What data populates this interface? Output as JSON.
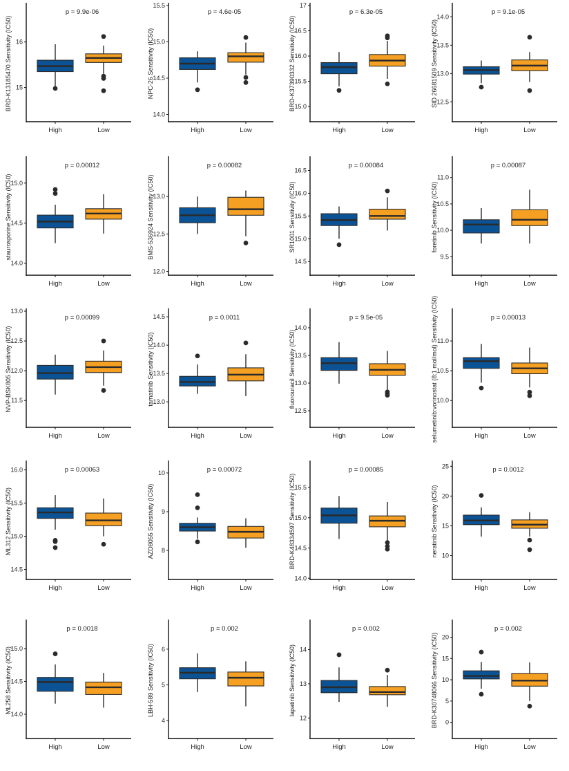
{
  "colors": {
    "High": "#0b5394",
    "Low": "#f5a023",
    "outline": "#2b2b2b",
    "outlier": "#2b2b2b"
  },
  "chart_data": [
    {
      "type": "boxplot",
      "title": "p = 9.9e-06",
      "ylabel": "BRD-K13185470 Sensitivity (IC50)",
      "categories": [
        "High",
        "Low"
      ],
      "ylim": [
        14.25,
        16.8
      ],
      "yticks": [
        15,
        16
      ],
      "ytick_labels": [
        "15",
        "16"
      ],
      "boxes": [
        {
          "group": "High",
          "whisker_low": 15.0,
          "q1": 15.35,
          "median": 15.47,
          "q3": 15.6,
          "whisker_high": 15.95,
          "outliers": [
            14.98
          ]
        },
        {
          "group": "Low",
          "whisker_low": 15.3,
          "q1": 15.55,
          "median": 15.65,
          "q3": 15.74,
          "whisker_high": 15.92,
          "outliers": [
            16.12,
            15.25,
            15.2,
            14.93
          ]
        }
      ]
    },
    {
      "type": "boxplot",
      "title": "p = 4.6e-05",
      "ylabel": "NPC-26 Sensitivity (IC50)",
      "categories": [
        "High",
        "Low"
      ],
      "ylim": [
        13.9,
        15.5
      ],
      "yticks": [
        14.0,
        14.5,
        15.0,
        15.5
      ],
      "ytick_labels": [
        "14.0",
        "14.5",
        "15.0",
        "15.5"
      ],
      "boxes": [
        {
          "group": "High",
          "whisker_low": 14.44,
          "q1": 14.62,
          "median": 14.7,
          "q3": 14.78,
          "whisker_high": 14.87,
          "outliers": [
            14.34
          ]
        },
        {
          "group": "Low",
          "whisker_low": 14.55,
          "q1": 14.72,
          "median": 14.8,
          "q3": 14.85,
          "whisker_high": 14.99,
          "outliers": [
            15.06,
            14.51,
            14.44
          ]
        }
      ]
    },
    {
      "type": "boxplot",
      "title": "p = 6.3e-05",
      "ylabel": "BRD-K37390332 Sensitivity (IC50)",
      "categories": [
        "High",
        "Low"
      ],
      "ylim": [
        14.7,
        17.0
      ],
      "yticks": [
        15.0,
        15.5,
        16.0,
        16.5,
        17
      ],
      "ytick_labels": [
        "15.0",
        "15.5",
        "16.0",
        "16.5",
        "17"
      ],
      "boxes": [
        {
          "group": "High",
          "whisker_low": 15.4,
          "q1": 15.65,
          "median": 15.78,
          "q3": 15.87,
          "whisker_high": 16.08,
          "outliers": [
            15.32
          ]
        },
        {
          "group": "Low",
          "whisker_low": 15.55,
          "q1": 15.8,
          "median": 15.91,
          "q3": 16.03,
          "whisker_high": 16.3,
          "outliers": [
            16.4,
            16.36,
            15.45
          ]
        }
      ]
    },
    {
      "type": "boxplot",
      "title": "p = 9.1e-05",
      "ylabel": "SID 26681509 Sensitivity (IC50)",
      "categories": [
        "High",
        "Low"
      ],
      "ylim": [
        12.15,
        14.2
      ],
      "yticks": [
        12.5,
        13.0,
        13.5,
        14.0
      ],
      "ytick_labels": [
        "12.5",
        "13.0",
        "13.5",
        "14.0"
      ],
      "boxes": [
        {
          "group": "High",
          "whisker_low": 12.83,
          "q1": 12.99,
          "median": 13.06,
          "q3": 13.12,
          "whisker_high": 13.23,
          "outliers": [
            12.76
          ]
        },
        {
          "group": "Low",
          "whisker_low": 12.85,
          "q1": 13.05,
          "median": 13.14,
          "q3": 13.24,
          "whisker_high": 13.38,
          "outliers": [
            13.64,
            12.7
          ]
        }
      ]
    },
    {
      "type": "boxplot",
      "title": "p = 0.00012",
      "ylabel": "staurosporine Sensitivity (IC50)",
      "categories": [
        "High",
        "Low"
      ],
      "ylim": [
        13.85,
        15.3
      ],
      "yticks": [
        14.0,
        14.5,
        15.0
      ],
      "ytick_labels": [
        "14.0",
        "14.5",
        "15.0"
      ],
      "boxes": [
        {
          "group": "High",
          "whisker_low": 14.25,
          "q1": 14.44,
          "median": 14.52,
          "q3": 14.6,
          "whisker_high": 14.73,
          "outliers": [
            14.92,
            14.87
          ]
        },
        {
          "group": "Low",
          "whisker_low": 14.37,
          "q1": 14.55,
          "median": 14.62,
          "q3": 14.68,
          "whisker_high": 14.86,
          "outliers": []
        }
      ]
    },
    {
      "type": "boxplot",
      "title": "p = 0.00082",
      "ylabel": "BMS-536924 Sensitivity (IC50)",
      "categories": [
        "High",
        "Low"
      ],
      "ylim": [
        11.95,
        13.5
      ],
      "yticks": [
        12.0,
        12.5,
        13.0
      ],
      "ytick_labels": [
        "12.0",
        "12.5",
        "13.0"
      ],
      "boxes": [
        {
          "group": "High",
          "whisker_low": 12.5,
          "q1": 12.65,
          "median": 12.75,
          "q3": 12.85,
          "whisker_high": 13.0,
          "outliers": []
        },
        {
          "group": "Low",
          "whisker_low": 12.47,
          "q1": 12.75,
          "median": 12.83,
          "q3": 12.99,
          "whisker_high": 13.08,
          "outliers": [
            12.38
          ]
        }
      ]
    },
    {
      "type": "boxplot",
      "title": "p = 0.00084",
      "ylabel": "SR1001 Sensitivity (IC50)",
      "categories": [
        "High",
        "Low"
      ],
      "ylim": [
        14.2,
        16.75
      ],
      "yticks": [
        14.5,
        15.0,
        15.5,
        16.0,
        16.5
      ],
      "ytick_labels": [
        "14.5",
        "15.0",
        "15.5",
        "16.0",
        "16.5"
      ],
      "boxes": [
        {
          "group": "High",
          "whisker_low": 15.0,
          "q1": 15.29,
          "median": 15.41,
          "q3": 15.55,
          "whisker_high": 15.71,
          "outliers": [
            14.87
          ]
        },
        {
          "group": "Low",
          "whisker_low": 15.18,
          "q1": 15.43,
          "median": 15.5,
          "q3": 15.65,
          "whisker_high": 15.91,
          "outliers": [
            16.05
          ]
        }
      ]
    },
    {
      "type": "boxplot",
      "title": "p = 0.00087",
      "ylabel": "foretinib Sensitivity (IC50)",
      "categories": [
        "High",
        "Low"
      ],
      "ylim": [
        9.15,
        11.35
      ],
      "yticks": [
        9.5,
        10.0,
        10.5,
        11.0
      ],
      "ytick_labels": [
        "9.5",
        "10.0",
        "10.5",
        "11.0"
      ],
      "boxes": [
        {
          "group": "High",
          "whisker_low": 9.75,
          "q1": 9.95,
          "median": 10.11,
          "q3": 10.2,
          "whisker_high": 10.42,
          "outliers": []
        },
        {
          "group": "Low",
          "whisker_low": 9.75,
          "q1": 10.09,
          "median": 10.2,
          "q3": 10.39,
          "whisker_high": 10.77,
          "outliers": []
        }
      ]
    },
    {
      "type": "boxplot",
      "title": "p = 0.00099",
      "ylabel": "NVP-BSK805 Sensitivity (IC50)",
      "categories": [
        "High",
        "Low"
      ],
      "ylim": [
        11.05,
        13.0
      ],
      "yticks": [
        11.5,
        12.0,
        12.5,
        13.0
      ],
      "ytick_labels": [
        "11.5",
        "12.0",
        "12.5",
        "13.0"
      ],
      "boxes": [
        {
          "group": "High",
          "whisker_low": 11.6,
          "q1": 11.86,
          "median": 11.96,
          "q3": 12.09,
          "whisker_high": 12.27,
          "outliers": []
        },
        {
          "group": "Low",
          "whisker_low": 11.75,
          "q1": 11.97,
          "median": 12.06,
          "q3": 12.16,
          "whisker_high": 12.34,
          "outliers": [
            12.5,
            11.67
          ]
        }
      ]
    },
    {
      "type": "boxplot",
      "title": "p = 0.0011",
      "ylabel": "tamatinib Sensitivity (IC50)",
      "categories": [
        "High",
        "Low"
      ],
      "ylim": [
        12.55,
        14.6
      ],
      "yticks": [
        13.0,
        13.5,
        14.0,
        14.5
      ],
      "ytick_labels": [
        "13.0",
        "13.5",
        "14.0",
        "14.5"
      ],
      "boxes": [
        {
          "group": "High",
          "whisker_low": 13.14,
          "q1": 13.28,
          "median": 13.35,
          "q3": 13.45,
          "whisker_high": 13.66,
          "outliers": [
            13.81
          ]
        },
        {
          "group": "Low",
          "whisker_low": 13.1,
          "q1": 13.37,
          "median": 13.48,
          "q3": 13.6,
          "whisker_high": 13.84,
          "outliers": [
            14.04
          ]
        }
      ]
    },
    {
      "type": "boxplot",
      "title": "p = 9.5e-05",
      "ylabel": "fluorouracil Sensitivity (IC50)",
      "categories": [
        "High",
        "Low"
      ],
      "ylim": [
        12.2,
        14.3
      ],
      "yticks": [
        12.5,
        13.0,
        13.5,
        14.0
      ],
      "ytick_labels": [
        "12.5",
        "13.0",
        "13.5",
        "14.0"
      ],
      "boxes": [
        {
          "group": "High",
          "whisker_low": 12.99,
          "q1": 13.23,
          "median": 13.36,
          "q3": 13.46,
          "whisker_high": 13.74,
          "outliers": []
        },
        {
          "group": "Low",
          "whisker_low": 12.86,
          "q1": 13.14,
          "median": 13.24,
          "q3": 13.35,
          "whisker_high": 13.58,
          "outliers": [
            12.84,
            12.81,
            12.78
          ]
        }
      ]
    },
    {
      "type": "boxplot",
      "title": "p = 0.00013",
      "ylabel": "selumetinib:vorinostat (8:1 mol/mol) Sensitivity (IC50)",
      "categories": [
        "High",
        "Low"
      ],
      "ylim": [
        9.55,
        11.5
      ],
      "yticks": [
        10.0,
        10.5,
        11.0
      ],
      "ytick_labels": [
        "10.0",
        "10.5",
        "11.0"
      ],
      "boxes": [
        {
          "group": "High",
          "whisker_low": 10.3,
          "q1": 10.54,
          "median": 10.66,
          "q3": 10.72,
          "whisker_high": 10.95,
          "outliers": [
            10.21
          ]
        },
        {
          "group": "Low",
          "whisker_low": 10.22,
          "q1": 10.45,
          "median": 10.54,
          "q3": 10.63,
          "whisker_high": 10.89,
          "outliers": [
            10.14,
            10.08
          ]
        }
      ]
    },
    {
      "type": "boxplot",
      "title": "p = 0.00063",
      "ylabel": "ML312 Sensitivity (IC50)",
      "categories": [
        "High",
        "Low"
      ],
      "ylim": [
        14.35,
        16.1
      ],
      "yticks": [
        14.5,
        15.0,
        15.5,
        16.0
      ],
      "ytick_labels": [
        "14.5",
        "15.0",
        "15.5",
        "16.0"
      ],
      "boxes": [
        {
          "group": "High",
          "whisker_low": 15.1,
          "q1": 15.27,
          "median": 15.36,
          "q3": 15.43,
          "whisker_high": 15.62,
          "outliers": [
            14.94,
            14.92,
            14.83
          ]
        },
        {
          "group": "Low",
          "whisker_low": 15.0,
          "q1": 15.16,
          "median": 15.24,
          "q3": 15.35,
          "whisker_high": 15.57,
          "outliers": [
            14.88
          ]
        }
      ]
    },
    {
      "type": "boxplot",
      "title": "p = 0.00072",
      "ylabel": "AZD8055 Sensitivity (IC50)",
      "categories": [
        "High",
        "Low"
      ],
      "ylim": [
        7.25,
        10.25
      ],
      "yticks": [
        8,
        9,
        10
      ],
      "ytick_labels": [
        "8",
        "9",
        "10"
      ],
      "boxes": [
        {
          "group": "High",
          "whisker_low": 8.3,
          "q1": 8.5,
          "median": 8.6,
          "q3": 8.7,
          "whisker_high": 8.85,
          "outliers": [
            9.44,
            9.1,
            8.22
          ]
        },
        {
          "group": "Low",
          "whisker_low": 8.07,
          "q1": 8.32,
          "median": 8.48,
          "q3": 8.62,
          "whisker_high": 8.83,
          "outliers": []
        }
      ]
    },
    {
      "type": "boxplot",
      "title": "p = 0.00085",
      "ylabel": "BRD-K48334597 Sensitivity (IC50)",
      "categories": [
        "High",
        "Low"
      ],
      "ylim": [
        13.98,
        15.9
      ],
      "yticks": [
        14.0,
        14.5,
        15.0,
        15.5
      ],
      "ytick_labels": [
        "14.0",
        "14.5",
        "15.0",
        "15.5"
      ],
      "boxes": [
        {
          "group": "High",
          "whisker_low": 14.65,
          "q1": 14.91,
          "median": 15.04,
          "q3": 15.16,
          "whisker_high": 15.36,
          "outliers": []
        },
        {
          "group": "Low",
          "whisker_low": 14.62,
          "q1": 14.85,
          "median": 14.95,
          "q3": 15.03,
          "whisker_high": 15.26,
          "outliers": [
            14.59,
            14.53,
            14.48
          ]
        }
      ]
    },
    {
      "type": "boxplot",
      "title": "p = 0.0012",
      "ylabel": "neratinib Sensitivity (IC50)",
      "categories": [
        "High",
        "Low"
      ],
      "ylim": [
        6.0,
        25.5
      ],
      "yticks": [
        10,
        15,
        20,
        25
      ],
      "ytick_labels": [
        "10",
        "15",
        "20",
        "25"
      ],
      "boxes": [
        {
          "group": "High",
          "whisker_low": 13.2,
          "q1": 15.2,
          "median": 15.9,
          "q3": 16.8,
          "whisker_high": 18.1,
          "outliers": [
            20.1
          ]
        },
        {
          "group": "Low",
          "whisker_low": 13.2,
          "q1": 14.6,
          "median": 15.2,
          "q3": 16.0,
          "whisker_high": 17.3,
          "outliers": [
            12.6,
            11.0
          ]
        }
      ]
    },
    {
      "type": "boxplot",
      "title": "p = 0.0018",
      "ylabel": "ML258 Sensitivity (IC50)",
      "categories": [
        "High",
        "Low"
      ],
      "ylim": [
        13.63,
        15.4
      ],
      "yticks": [
        14.0,
        14.5,
        15.0
      ],
      "ytick_labels": [
        "14.0",
        "14.5",
        "15.0"
      ],
      "boxes": [
        {
          "group": "High",
          "whisker_low": 14.16,
          "q1": 14.35,
          "median": 14.49,
          "q3": 14.56,
          "whisker_high": 14.76,
          "outliers": [
            14.92
          ]
        },
        {
          "group": "Low",
          "whisker_low": 14.1,
          "q1": 14.3,
          "median": 14.41,
          "q3": 14.49,
          "whisker_high": 14.63,
          "outliers": []
        }
      ]
    },
    {
      "type": "boxplot",
      "title": "p = 0.002",
      "ylabel": "LBH-589 Sensitivity (IC50)",
      "categories": [
        "High",
        "Low"
      ],
      "ylim": [
        3.5,
        6.75
      ],
      "yticks": [
        4,
        5,
        6
      ],
      "ytick_labels": [
        "4",
        "5",
        "6"
      ],
      "boxes": [
        {
          "group": "High",
          "whisker_low": 4.8,
          "q1": 5.17,
          "median": 5.34,
          "q3": 5.48,
          "whisker_high": 5.88,
          "outliers": []
        },
        {
          "group": "Low",
          "whisker_low": 4.4,
          "q1": 4.97,
          "median": 5.2,
          "q3": 5.36,
          "whisker_high": 5.66,
          "outliers": []
        }
      ]
    },
    {
      "type": "boxplot",
      "title": "p = 0.002",
      "ylabel": "lapatinib Sensitivity (IC50)",
      "categories": [
        "High",
        "Low"
      ],
      "ylim": [
        11.4,
        14.8
      ],
      "yticks": [
        12,
        13,
        14
      ],
      "ytick_labels": [
        "12",
        "13",
        "14"
      ],
      "boxes": [
        {
          "group": "High",
          "whisker_low": 12.47,
          "q1": 12.74,
          "median": 12.9,
          "q3": 13.1,
          "whisker_high": 13.48,
          "outliers": [
            13.85
          ]
        },
        {
          "group": "Low",
          "whisker_low": 12.33,
          "q1": 12.68,
          "median": 12.76,
          "q3": 12.92,
          "whisker_high": 13.26,
          "outliers": [
            13.4
          ]
        }
      ]
    },
    {
      "type": "boxplot",
      "title": "p = 0.002",
      "ylabel": "BRD-K30748066 Sensitivity (IC50)",
      "categories": [
        "High",
        "Low"
      ],
      "ylim": [
        -3.8,
        23.5
      ],
      "yticks": [
        0,
        5,
        10,
        15,
        20
      ],
      "ytick_labels": [
        "0",
        "5",
        "10",
        "15",
        "20"
      ],
      "boxes": [
        {
          "group": "High",
          "whisker_low": 7.9,
          "q1": 10.2,
          "median": 10.9,
          "q3": 12.1,
          "whisker_high": 14.2,
          "outliers": [
            16.5,
            6.6
          ]
        },
        {
          "group": "Low",
          "whisker_low": 5.0,
          "q1": 8.5,
          "median": 9.8,
          "q3": 11.5,
          "whisker_high": 14.1,
          "outliers": [
            3.8
          ]
        }
      ]
    }
  ]
}
